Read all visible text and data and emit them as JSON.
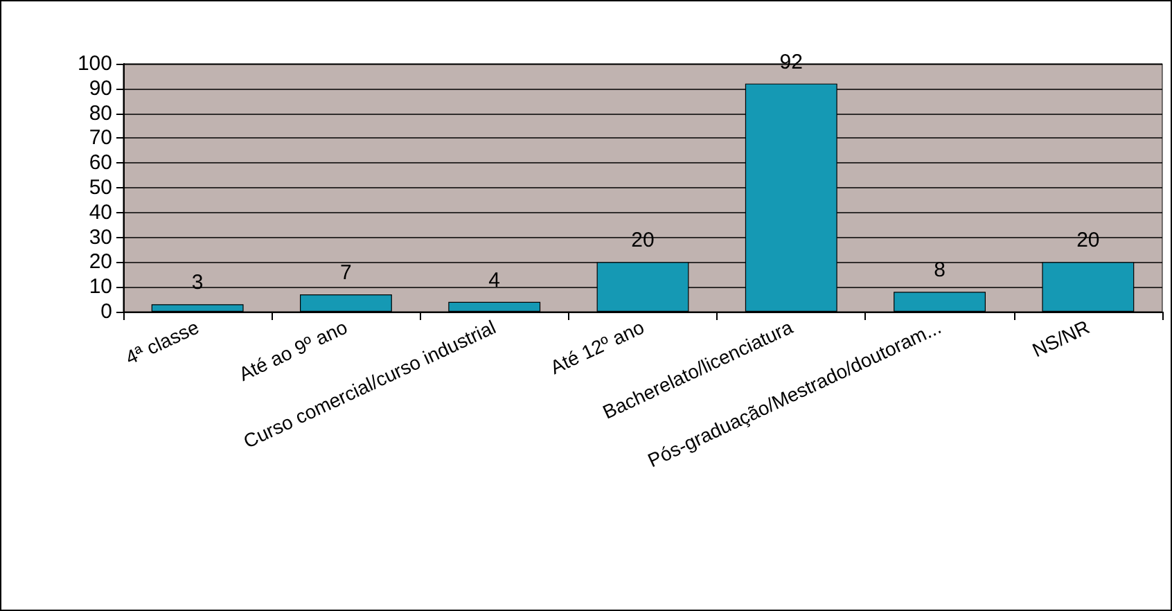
{
  "chart_data": {
    "type": "bar",
    "categories": [
      "4ª classe",
      "Até ao 9º ano",
      "Curso comercial/curso industrial",
      "Até 12º ano",
      "Bacherelato/licenciatura",
      "Pós-graduação/Mestrado/doutoram...",
      "NS/NR"
    ],
    "values": [
      3,
      7,
      4,
      20,
      92,
      8,
      20
    ],
    "color": "#1599b4",
    "ylim": [
      0,
      100
    ],
    "yticks": [
      0,
      10,
      20,
      30,
      40,
      50,
      60,
      70,
      80,
      90,
      100
    ],
    "grid": "y",
    "data_labels": true
  }
}
